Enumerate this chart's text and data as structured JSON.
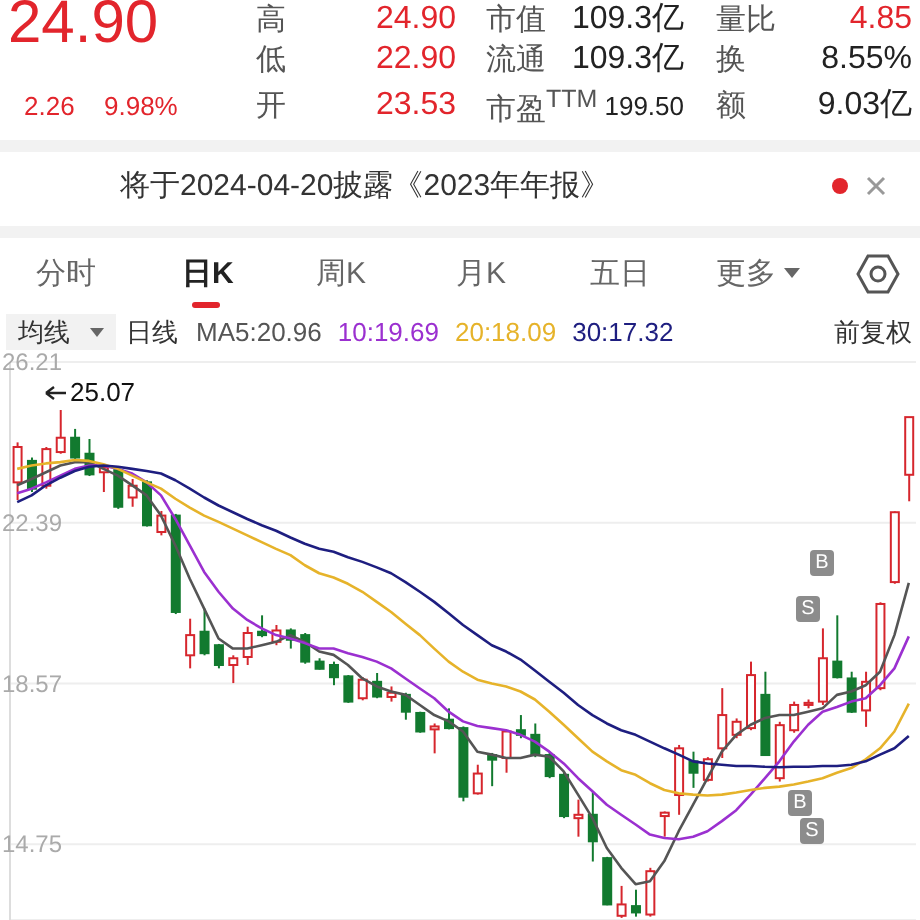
{
  "chart_data": {
    "type": "candlestick",
    "annotations": [
      "24.90",
      "2.26",
      "9.98%",
      "高",
      "24.90",
      "低",
      "22.90",
      "开",
      "23.53",
      "市值",
      "109.3亿",
      "流通",
      "109.3亿",
      "市盈$^{TTM}$",
      "199.50",
      "量比",
      "4.85",
      "换",
      "8.55%",
      "额",
      "9.03亿",
      "将于2024-04-20披露《2023年年报》",
      "分时",
      "日K",
      "周K",
      "月K",
      "五日",
      "更多",
      "均线",
      "日线",
      "前复权",
      "25.07",
      "B",
      "S",
      "B",
      "S"
    ],
    "categories": [
      null,
      null,
      null,
      null,
      null,
      null,
      null,
      null,
      null,
      null,
      null,
      null,
      null,
      null,
      null,
      null,
      null,
      null,
      null,
      null,
      null,
      null,
      null,
      null,
      null,
      null,
      null,
      null,
      null,
      null,
      null,
      null,
      null,
      null,
      null,
      null,
      null,
      null,
      null,
      null,
      null,
      null,
      null,
      null,
      null,
      null,
      null,
      null,
      null,
      null,
      null,
      null,
      null,
      null,
      null,
      null,
      null,
      null,
      null,
      null,
      null,
      null,
      null
    ],
    "ohlc": [
      [
        23.35,
        24.3,
        22.93,
        24.19
      ],
      [
        23.86,
        23.94,
        23.12,
        23.2
      ],
      [
        23.27,
        24.19,
        23.2,
        24.14
      ],
      [
        24.07,
        25.07,
        24.03,
        24.41
      ],
      [
        24.41,
        24.62,
        23.88,
        23.94
      ],
      [
        24.03,
        24.38,
        23.5,
        23.54
      ],
      [
        23.59,
        23.78,
        23.12,
        23.7
      ],
      [
        23.64,
        23.67,
        22.72,
        22.77
      ],
      [
        22.99,
        23.43,
        22.77,
        23.27
      ],
      [
        23.35,
        23.4,
        22.3,
        22.33
      ],
      [
        22.17,
        22.67,
        22.09,
        22.56
      ],
      [
        22.56,
        22.6,
        20.22,
        20.27
      ],
      [
        19.24,
        20.11,
        18.93,
        19.72
      ],
      [
        19.8,
        20.35,
        19.24,
        19.29
      ],
      [
        19.48,
        19.51,
        18.93,
        19.01
      ],
      [
        19.01,
        19.24,
        18.58,
        19.17
      ],
      [
        19.2,
        19.92,
        19.01,
        19.77
      ],
      [
        19.8,
        20.19,
        19.67,
        19.72
      ],
      [
        19.56,
        19.96,
        19.48,
        19.83
      ],
      [
        19.83,
        19.88,
        19.4,
        19.61
      ],
      [
        19.72,
        19.77,
        19.04,
        19.09
      ],
      [
        19.09,
        19.17,
        18.9,
        18.92
      ],
      [
        19.01,
        19.09,
        18.53,
        18.72
      ],
      [
        18.74,
        18.77,
        18.11,
        18.14
      ],
      [
        18.22,
        18.72,
        18.17,
        18.66
      ],
      [
        18.61,
        18.82,
        18.22,
        18.26
      ],
      [
        18.25,
        18.5,
        18.14,
        18.35
      ],
      [
        18.3,
        18.35,
        17.71,
        17.9
      ],
      [
        17.87,
        17.9,
        17.4,
        17.43
      ],
      [
        17.48,
        17.62,
        16.91,
        17.55
      ],
      [
        17.71,
        17.98,
        17.48,
        17.51
      ],
      [
        17.51,
        17.55,
        15.77,
        15.88
      ],
      [
        15.96,
        16.64,
        15.93,
        16.43
      ],
      [
        16.87,
        16.92,
        16.13,
        16.76
      ],
      [
        16.8,
        17.46,
        16.45,
        17.43
      ],
      [
        17.46,
        17.82,
        17.27,
        17.35
      ],
      [
        17.35,
        17.62,
        16.82,
        16.87
      ],
      [
        16.87,
        16.95,
        16.32,
        16.37
      ],
      [
        16.4,
        16.48,
        15.37,
        15.42
      ],
      [
        15.37,
        15.81,
        14.93,
        15.45
      ],
      [
        15.45,
        16.01,
        14.34,
        14.82
      ],
      [
        14.42,
        14.45,
        13.3,
        13.32
      ],
      [
        13.05,
        13.76,
        13.0,
        13.32
      ],
      [
        13.28,
        13.67,
        13.03,
        13.13
      ],
      [
        13.08,
        14.19,
        13.03,
        14.11
      ],
      [
        15.42,
        15.53,
        14.93,
        15.5
      ],
      [
        15.92,
        17.11,
        15.45,
        17.03
      ],
      [
        16.72,
        16.95,
        16.09,
        16.45
      ],
      [
        16.28,
        16.82,
        16.24,
        16.77
      ],
      [
        17.03,
        18.46,
        16.8,
        17.82
      ],
      [
        17.35,
        17.74,
        17.27,
        17.66
      ],
      [
        17.51,
        19.09,
        17.46,
        18.77
      ],
      [
        18.3,
        18.85,
        16.85,
        16.87
      ],
      [
        16.32,
        17.66,
        16.24,
        17.58
      ],
      [
        17.46,
        18.14,
        17.4,
        18.06
      ],
      [
        18.06,
        18.19,
        17.98,
        18.11
      ],
      [
        18.14,
        19.88,
        18.06,
        19.17
      ],
      [
        19.09,
        20.19,
        18.69,
        18.72
      ],
      [
        18.69,
        18.85,
        17.87,
        17.9
      ],
      [
        17.93,
        18.85,
        17.54,
        18.61
      ],
      [
        18.46,
        20.5,
        18.41,
        20.46
      ],
      [
        20.98,
        22.66,
        20.94,
        22.64
      ],
      [
        23.53,
        24.9,
        22.9,
        24.9
      ]
    ],
    "colors": [
      "#d6262d",
      "#127a2f",
      "#d6262d",
      "#d6262d",
      "#127a2f",
      "#127a2f",
      "#d6262d",
      "#127a2f",
      "#d6262d",
      "#127a2f",
      "#d6262d",
      "#127a2f",
      "#d6262d",
      "#127a2f",
      "#127a2f",
      "#d6262d",
      "#d6262d",
      "#127a2f",
      "#d6262d",
      "#127a2f",
      "#127a2f",
      "#127a2f",
      "#127a2f",
      "#127a2f",
      "#d6262d",
      "#127a2f",
      "#d6262d",
      "#127a2f",
      "#127a2f",
      "#d6262d",
      "#127a2f",
      "#127a2f",
      "#d6262d",
      "#127a2f",
      "#d6262d",
      "#127a2f",
      "#127a2f",
      "#127a2f",
      "#127a2f",
      "#d6262d",
      "#127a2f",
      "#127a2f",
      "#d6262d",
      "#127a2f",
      "#d6262d",
      "#d6262d",
      "#d6262d",
      "#127a2f",
      "#d6262d",
      "#d6262d",
      "#d6262d",
      "#d6262d",
      "#127a2f",
      "#d6262d",
      "#d6262d",
      "#d6262d",
      "#d6262d",
      "#127a2f",
      "#127a2f",
      "#d6262d",
      "#d6262d",
      "#d6262d",
      "#d6262d"
    ],
    "series": [
      {
        "type": "line",
        "name": "MA5:20.96",
        "color": "#555555",
        "values": [
          23.28,
          23.43,
          23.59,
          23.75,
          23.83,
          23.83,
          23.67,
          23.51,
          23.28,
          23.04,
          22.56,
          21.85,
          21.06,
          20.35,
          19.64,
          19.4,
          19.4,
          19.48,
          19.56,
          19.72,
          19.56,
          19.33,
          19.25,
          19.01,
          18.69,
          18.5,
          18.38,
          18.3,
          18.06,
          17.82,
          17.67,
          17.43,
          16.95,
          16.88,
          16.8,
          16.8,
          16.88,
          16.83,
          16.48,
          15.93,
          15.37,
          14.66,
          14.19,
          13.8,
          13.87,
          14.35,
          15.06,
          15.69,
          16.32,
          16.95,
          17.35,
          17.59,
          17.75,
          17.82,
          17.82,
          17.9,
          17.98,
          18.3,
          18.38,
          18.53,
          18.85,
          19.72,
          20.96
        ]
      },
      {
        "type": "line",
        "name": "10:19.69",
        "color": "#9b30d0",
        "values": [
          23.09,
          23.2,
          23.35,
          23.51,
          23.67,
          23.75,
          23.75,
          23.67,
          23.56,
          23.35,
          23.04,
          22.48,
          21.85,
          21.22,
          20.75,
          20.35,
          20.08,
          19.88,
          19.72,
          19.64,
          19.53,
          19.4,
          19.4,
          19.29,
          19.2,
          19.09,
          18.93,
          18.69,
          18.45,
          18.22,
          17.9,
          17.67,
          17.56,
          17.51,
          17.46,
          17.35,
          17.19,
          16.95,
          16.67,
          16.32,
          16.01,
          15.69,
          15.45,
          15.22,
          14.98,
          14.9,
          14.87,
          14.93,
          15.06,
          15.3,
          15.56,
          15.93,
          16.32,
          16.72,
          17.19,
          17.59,
          17.9,
          18.01,
          18.14,
          18.22,
          18.53,
          18.93,
          19.69
        ]
      },
      {
        "type": "line",
        "name": "20:18.09",
        "color": "#e6b32a",
        "values": [
          23.67,
          23.75,
          23.8,
          23.83,
          23.88,
          23.86,
          23.78,
          23.67,
          23.51,
          23.35,
          23.2,
          22.96,
          22.75,
          22.56,
          22.41,
          22.25,
          22.09,
          21.93,
          21.77,
          21.62,
          21.38,
          21.19,
          21.09,
          20.94,
          20.75,
          20.51,
          20.27,
          19.99,
          19.72,
          19.4,
          19.09,
          18.85,
          18.66,
          18.57,
          18.5,
          18.38,
          18.19,
          17.9,
          17.59,
          17.27,
          16.95,
          16.72,
          16.51,
          16.4,
          16.2,
          16.04,
          15.96,
          15.93,
          15.91,
          15.93,
          15.98,
          16.04,
          16.09,
          16.12,
          16.17,
          16.24,
          16.32,
          16.45,
          16.56,
          16.77,
          17.03,
          17.43,
          18.09
        ]
      },
      {
        "type": "line",
        "name": "30:17.32",
        "color": "#1e1e80",
        "values": [
          22.88,
          23.04,
          23.28,
          23.46,
          23.62,
          23.72,
          23.75,
          23.72,
          23.67,
          23.62,
          23.56,
          23.4,
          23.2,
          22.99,
          22.8,
          22.64,
          22.48,
          22.33,
          22.2,
          22.04,
          21.89,
          21.77,
          21.7,
          21.57,
          21.46,
          21.33,
          21.19,
          20.98,
          20.75,
          20.51,
          20.24,
          19.96,
          19.72,
          19.48,
          19.33,
          19.14,
          18.88,
          18.61,
          18.35,
          18.06,
          17.82,
          17.62,
          17.46,
          17.35,
          17.19,
          17.03,
          16.88,
          16.72,
          16.67,
          16.64,
          16.61,
          16.61,
          16.59,
          16.58,
          16.59,
          16.59,
          16.61,
          16.61,
          16.64,
          16.72,
          16.88,
          17.03,
          17.32
        ]
      }
    ],
    "ylim": [
      12.95,
      26.21
    ],
    "yticks": [
      26.21,
      22.39,
      18.57,
      14.75
    ],
    "grid": "y",
    "legend": "top",
    "tick_labels": "y",
    "marker": "none",
    "line_style": "solid"
  }
}
